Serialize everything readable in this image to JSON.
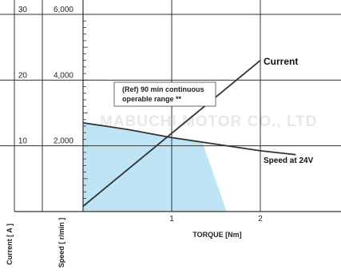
{
  "watermark": "MABUCHI MOTOR CO., LTD",
  "chart_data": {
    "type": "line",
    "xlabel": "TORQUE [Nm]",
    "ylabel_current": "Current [ A ]",
    "ylabel_speed": "Speed [ r/min ]",
    "x_ticks": [
      "1",
      "2"
    ],
    "x_tick_values": [
      1,
      2
    ],
    "xlim": [
      0,
      2.6
    ],
    "current_ticks": [
      "10",
      "20",
      "30"
    ],
    "current_tick_values": [
      10,
      20,
      30
    ],
    "current_lim": [
      0,
      30
    ],
    "speed_ticks": [
      "2,000",
      "4,000",
      "6,000"
    ],
    "speed_tick_values": [
      2000,
      4000,
      6000
    ],
    "speed_lim": [
      0,
      6000
    ],
    "grid": true,
    "series": [
      {
        "name": "Current",
        "axis": "current",
        "color": "#333333",
        "x": [
          0,
          2.0
        ],
        "y": [
          0.8,
          23.0
        ]
      },
      {
        "name": "Speed at 24V",
        "axis": "speed",
        "color": "#333333",
        "x": [
          0,
          0.5,
          1.0,
          1.5,
          2.0,
          2.4
        ],
        "y": [
          2700,
          2500,
          2250,
          2050,
          1850,
          1730
        ]
      }
    ],
    "region": {
      "label": "(Ref) 90 min continuous operable range **",
      "label_lines": [
        "(Ref) 90 min continuous",
        "operable range **"
      ],
      "color": "#bfe4f6",
      "boundary_x": [
        0,
        0.5,
        1.0,
        1.35,
        1.62,
        0
      ],
      "boundary_y_speed": [
        2700,
        2500,
        2250,
        2080,
        0,
        0
      ]
    }
  }
}
